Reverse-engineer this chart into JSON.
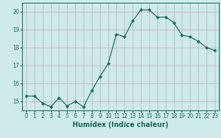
{
  "x": [
    0,
    1,
    2,
    3,
    4,
    5,
    6,
    7,
    8,
    9,
    10,
    11,
    12,
    13,
    14,
    15,
    16,
    17,
    18,
    19,
    20,
    21,
    22,
    23
  ],
  "y": [
    15.3,
    15.3,
    14.9,
    14.7,
    15.2,
    14.75,
    15.0,
    14.7,
    15.6,
    16.4,
    17.1,
    18.75,
    18.6,
    19.5,
    20.1,
    20.1,
    19.7,
    19.7,
    19.4,
    18.7,
    18.6,
    18.35,
    18.0,
    17.85
  ],
  "line_color": "#1a6b5a",
  "marker": "D",
  "marker_size": 2.2,
  "xlabel": "Humidex (Indice chaleur)",
  "xlim": [
    -0.5,
    23.5
  ],
  "ylim": [
    14.5,
    20.5
  ],
  "yticks": [
    15,
    16,
    17,
    18,
    19,
    20
  ],
  "xticks": [
    0,
    1,
    2,
    3,
    4,
    5,
    6,
    7,
    8,
    9,
    10,
    11,
    12,
    13,
    14,
    15,
    16,
    17,
    18,
    19,
    20,
    21,
    22,
    23
  ],
  "bg_color": "#ceeaea",
  "grid_color": "#c8a8a8",
  "tick_label_fontsize": 5.5,
  "xlabel_fontsize": 7.0
}
